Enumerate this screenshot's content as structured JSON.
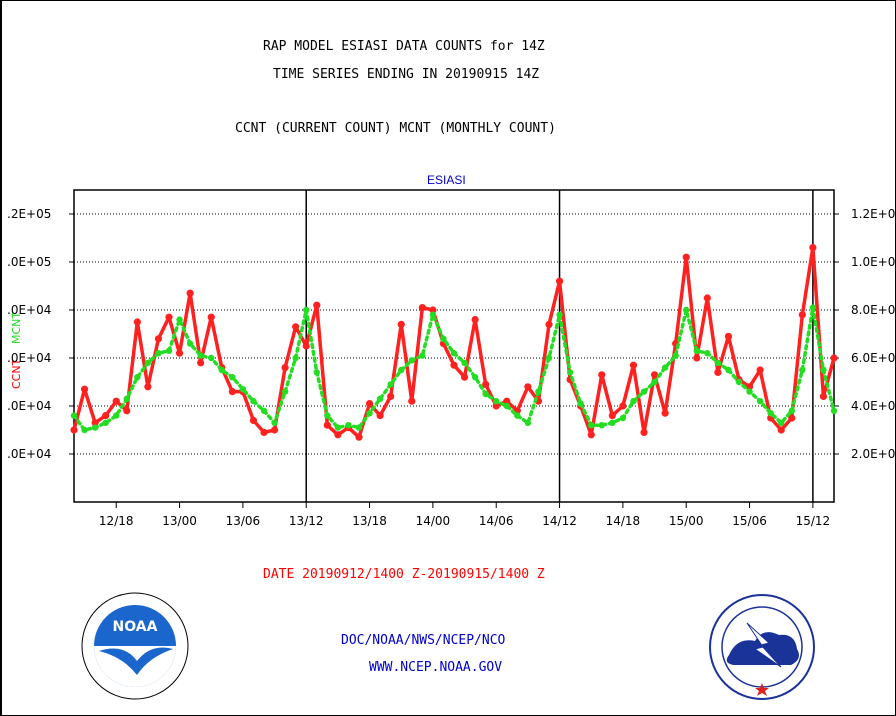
{
  "header": {
    "title_line1": "RAP MODEL ESIASI DATA COUNTS for 14Z",
    "title_line2": "TIME SERIES ENDING IN 20190915 14Z",
    "subtitle": "CCNT (CURRENT COUNT) MCNT (MONTHLY COUNT)"
  },
  "footer": {
    "date_range": "DATE 20190912/1400 Z-20190915/1400 Z",
    "credit_line1": "DOC/NOAA/NWS/NCEP/NCO",
    "credit_line2": "WWW.NCEP.NOAA.GOV"
  },
  "logos": {
    "noaa_text": "NOAA",
    "noaa_icon": "noaa-logo-icon",
    "nws_icon": "nws-logo-icon"
  },
  "chart_data": {
    "type": "line",
    "panel_title": "ESIASI",
    "left_axis_labels": {
      "ccnt": "CCNT",
      "mcnt": "MCNT"
    },
    "left_tick_labels": [
      ".2E+05",
      ".0E+05",
      ".0E+04",
      ".0E+04",
      ".0E+04",
      ".0E+04"
    ],
    "right_tick_labels": [
      "1.2E+0",
      "1.0E+0",
      "8.0E+0",
      "6.0E+0",
      "4.0E+0",
      "2.0E+0"
    ],
    "tick_values": [
      120000,
      100000,
      80000,
      60000,
      40000,
      20000
    ],
    "x_tick_labels": [
      "12/18",
      "13/00",
      "13/06",
      "13/12",
      "13/18",
      "14/00",
      "14/06",
      "14/12",
      "14/18",
      "15/00",
      "15/06",
      "15/12"
    ],
    "x_tick_hours": [
      4,
      10,
      16,
      22,
      28,
      34,
      40,
      46,
      52,
      58,
      64,
      70
    ],
    "day_boundary_hours": [
      22,
      46,
      70
    ],
    "x_range_hours": [
      0,
      72
    ],
    "ylim": [
      0,
      130000
    ],
    "grid": true,
    "colors": {
      "ccnt": "#ff2020",
      "mcnt": "#22dd22"
    },
    "series": [
      {
        "name": "CCNT",
        "color": "#ff2020",
        "values": [
          30000,
          47000,
          33000,
          36000,
          42000,
          38000,
          75000,
          48000,
          68000,
          77000,
          62000,
          87000,
          58000,
          77000,
          56000,
          46000,
          46000,
          34000,
          29000,
          30000,
          56000,
          73000,
          65000,
          82000,
          32000,
          28000,
          31000,
          27000,
          41000,
          36000,
          44000,
          74000,
          42000,
          81000,
          80000,
          66000,
          57000,
          52000,
          76000,
          49000,
          40000,
          42000,
          38000,
          48000,
          42000,
          74000,
          92000,
          51000,
          40000,
          28000,
          53000,
          36000,
          40000,
          57000,
          29000,
          53000,
          37000,
          66000,
          102000,
          60000,
          85000,
          54000,
          69000,
          51000,
          48000,
          55000,
          35000,
          30000,
          35000,
          78000,
          106000,
          44000,
          60000
        ]
      },
      {
        "name": "MCNT",
        "color": "#22dd22",
        "values": [
          36000,
          30000,
          31000,
          33000,
          36000,
          43000,
          52000,
          58000,
          62000,
          63000,
          76000,
          66000,
          61000,
          60000,
          55000,
          52000,
          47000,
          42000,
          38000,
          33000,
          46000,
          60000,
          80000,
          54000,
          36000,
          31000,
          32000,
          31000,
          37000,
          43000,
          49000,
          55000,
          59000,
          61000,
          78000,
          68000,
          62000,
          58000,
          52000,
          45000,
          42000,
          40000,
          36000,
          33000,
          46000,
          60000,
          78000,
          54000,
          41000,
          32000,
          32000,
          33000,
          35000,
          42000,
          46000,
          50000,
          56000,
          61000,
          80000,
          63000,
          62000,
          58000,
          55000,
          50000,
          46000,
          42000,
          37000,
          33000,
          38000,
          55000,
          81000,
          55000,
          38000
        ]
      }
    ]
  }
}
